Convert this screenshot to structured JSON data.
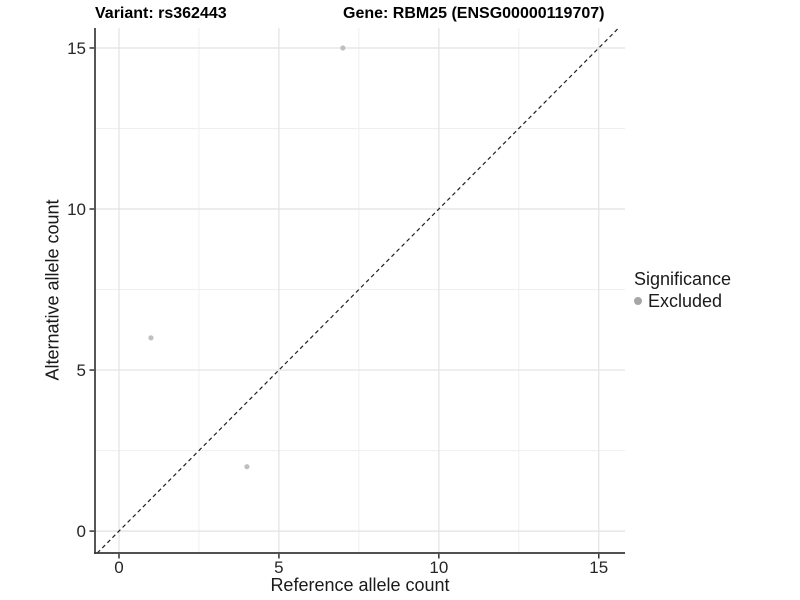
{
  "chart_data": {
    "type": "scatter",
    "title_left": "Variant: rs362443",
    "title_right": "Gene: RBM25 (ENSG00000119707)",
    "xlabel": "Reference allele count",
    "ylabel": "Alternative allele count",
    "xlim": [
      -0.75,
      15.82
    ],
    "ylim": [
      -0.68,
      15.62
    ],
    "x_major_ticks": [
      0,
      5,
      10,
      15
    ],
    "y_major_ticks": [
      0,
      5,
      10,
      15
    ],
    "x_minor_ticks": [
      2.5,
      7.5,
      12.5
    ],
    "y_minor_ticks": [
      2.5,
      7.5,
      12.5
    ],
    "grid": true,
    "series": [
      {
        "name": "Excluded",
        "points": [
          {
            "x": 7,
            "y": 15
          },
          {
            "x": 1,
            "y": 6
          },
          {
            "x": 4,
            "y": 2
          }
        ]
      }
    ],
    "reference_line": {
      "slope": 1,
      "intercept": 0,
      "style": "dashed"
    },
    "legend": {
      "title": "Significance",
      "position": "right",
      "items": [
        {
          "label": "Excluded",
          "color": "#a6a6a6"
        }
      ]
    },
    "colors": {
      "point": "#bfbfbf",
      "legend_dot": "#a6a6a6",
      "grid_major": "#e2e2e2",
      "grid_minor": "#efefef",
      "axis_line": "#383838",
      "tick_mark": "#333333",
      "tick_label": "#262626",
      "dashed_line": "#1f1f1f",
      "background": "#ffffff"
    }
  }
}
